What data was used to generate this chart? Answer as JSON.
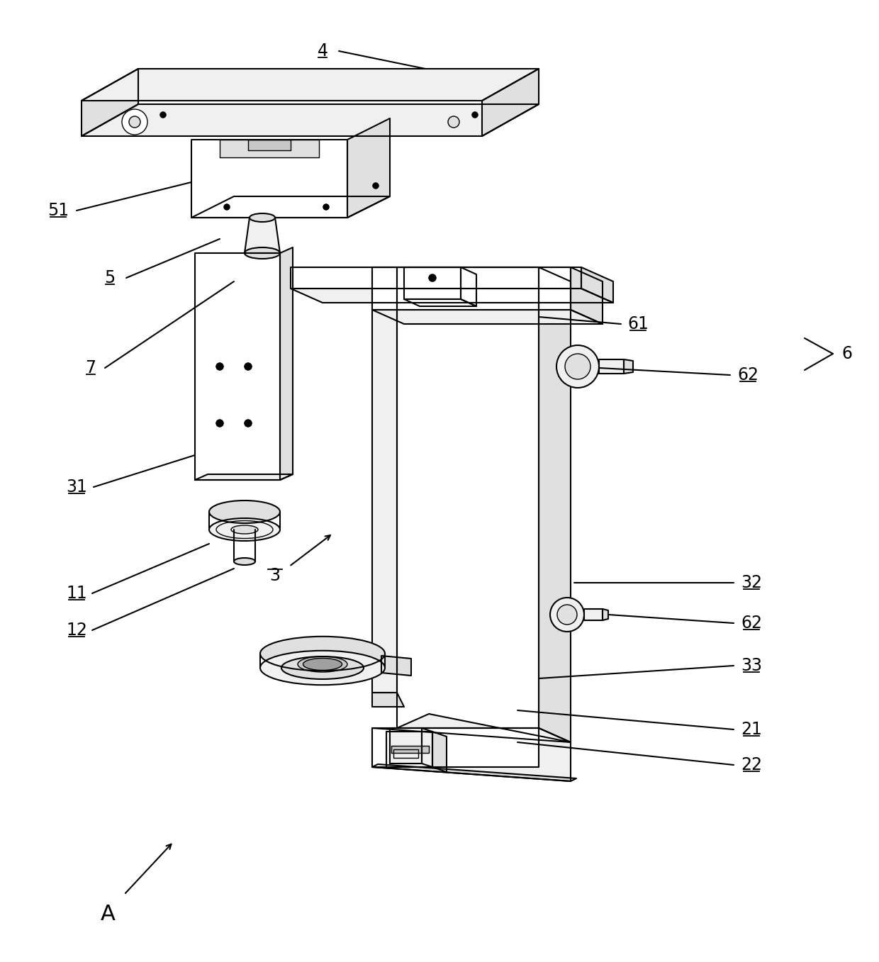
{
  "bg_color": "#ffffff",
  "line_color": "#000000",
  "lw": 1.5,
  "lw_thin": 1.0,
  "gray_light": "#f0f0f0",
  "gray_mid": "#e0e0e0",
  "gray_dark": "#c8c8c8",
  "white": "#ffffff"
}
